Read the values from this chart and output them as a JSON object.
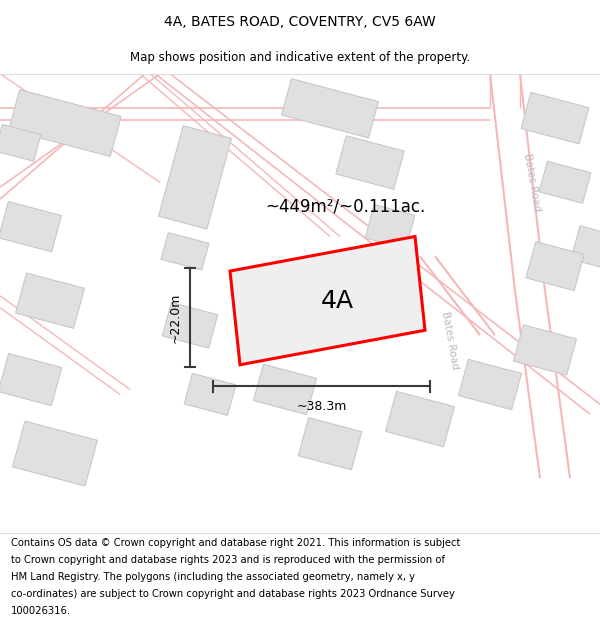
{
  "title": "4A, BATES ROAD, COVENTRY, CV5 6AW",
  "subtitle": "Map shows position and indicative extent of the property.",
  "footer": "Contains OS data © Crown copyright and database right 2021. This information is subject to Crown copyright and database rights 2023 and is reproduced with the permission of HM Land Registry. The polygons (including the associated geometry, namely x, y co-ordinates) are subject to Crown copyright and database rights 2023 Ordnance Survey 100026316.",
  "area_label": "~449m²/~0.111ac.",
  "property_label": "4A",
  "width_label": "~38.3m",
  "height_label": "~22.0m",
  "map_bg": "#f7f7f7",
  "building_fill": "#e0e0e0",
  "building_edge": "#c8c8c8",
  "road_color": "#f5b8b8",
  "property_fill": "#efefef",
  "property_border": "#ff0000",
  "road_label_color": "#c0b8b8",
  "dim_line_color": "#3a3a3a",
  "title_fontsize": 10,
  "subtitle_fontsize": 8.5,
  "footer_fontsize": 7.2,
  "bates_road_label_1": "Bates Road",
  "bates_road_label_2": "Bates Road"
}
